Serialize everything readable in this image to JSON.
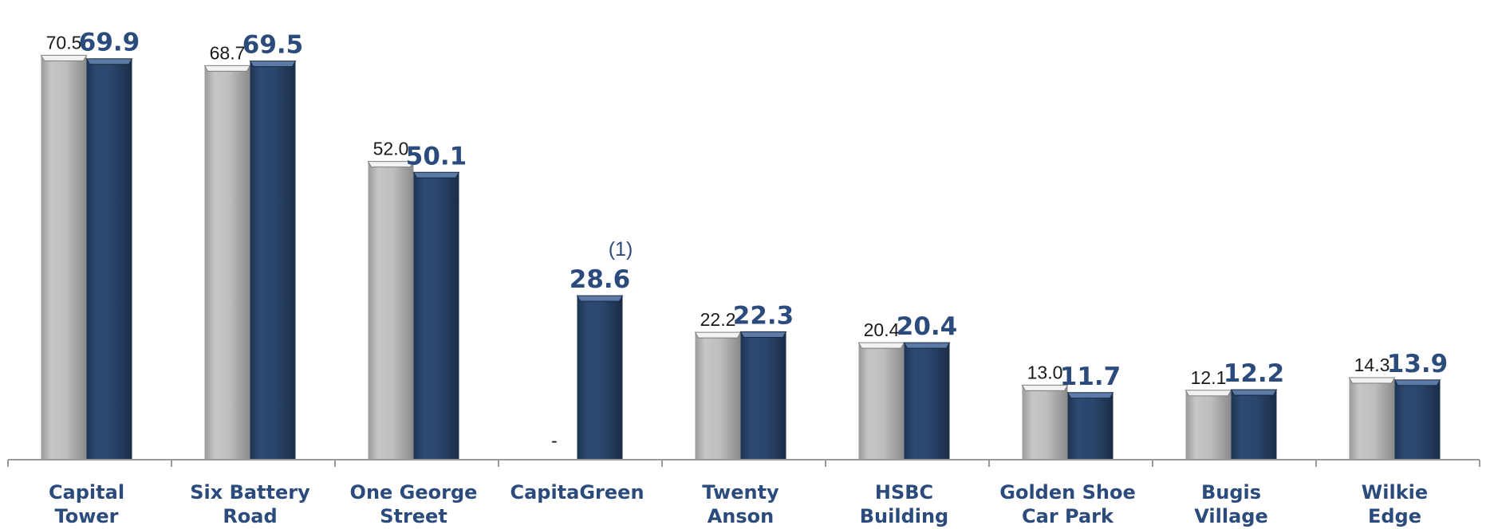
{
  "chart_data": {
    "type": "bar",
    "categories": [
      [
        "Capital",
        "Tower"
      ],
      [
        "Six Battery",
        "Road"
      ],
      [
        "One George",
        "Street"
      ],
      [
        "CapitaGreen"
      ],
      [
        "Twenty",
        "Anson"
      ],
      [
        "HSBC",
        "Building"
      ],
      [
        "Golden Shoe",
        "Car Park"
      ],
      [
        "Bugis",
        "Village"
      ],
      [
        "Wilkie",
        "Edge"
      ]
    ],
    "series": [
      {
        "values": [
          70.5,
          68.7,
          52.0,
          null,
          22.2,
          20.4,
          13.0,
          12.1,
          14.3
        ],
        "labels": [
          "70.5",
          "68.7",
          "52.0",
          "-",
          "22.2",
          "20.4",
          "13.0",
          "12.1",
          "14.3"
        ],
        "color": "#bdbdbd"
      },
      {
        "values": [
          69.9,
          69.5,
          50.1,
          28.6,
          22.3,
          20.4,
          11.7,
          12.2,
          13.9
        ],
        "labels": [
          "69.9",
          "69.5",
          "50.1",
          "28.6",
          "22.3",
          "20.4",
          "11.7",
          "12.2",
          "13.9"
        ],
        "color": "#2a4468"
      }
    ],
    "annotations": [
      {
        "category_index": 3,
        "text": "(1)"
      }
    ],
    "ylim": [
      0,
      75
    ],
    "grid": false,
    "legend": "none",
    "colors": {
      "category_label": "#2c4b7d",
      "value_label_blue": "#2c4b7d",
      "axis": "#999999"
    }
  }
}
